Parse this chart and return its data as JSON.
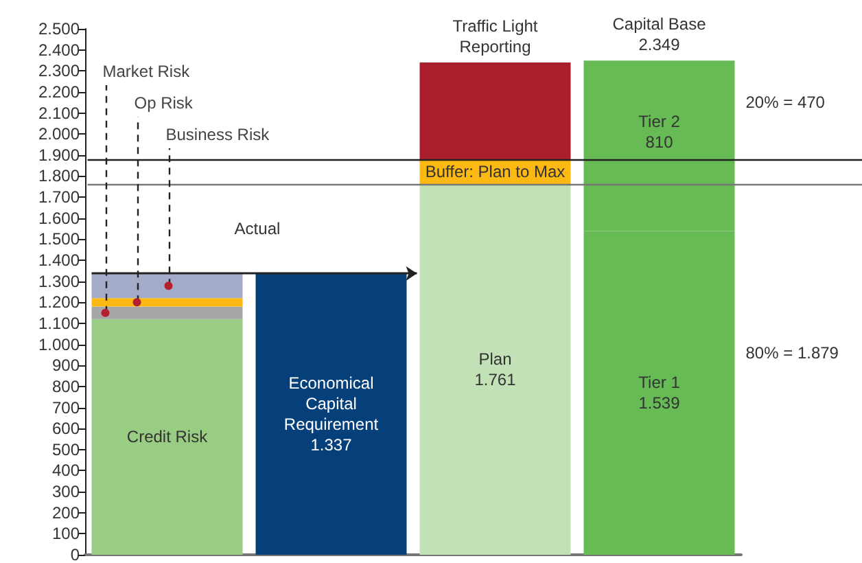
{
  "chart_data": {
    "type": "bar",
    "stacked": true,
    "categories": [
      null,
      null,
      "Traffic Light Reporting",
      "Capital Base"
    ],
    "totals": [
      null,
      null,
      null,
      "2.349"
    ],
    "series": [
      {
        "name": "Credit Risk",
        "color": "#98cd83",
        "values": [
          1120,
          null,
          null,
          null
        ]
      },
      {
        "name": "Market Risk",
        "color": "#a7a7a9",
        "values": [
          60,
          null,
          null,
          null
        ]
      },
      {
        "name": "Op Risk",
        "color": "#fdb913",
        "values": [
          40,
          null,
          null,
          null
        ]
      },
      {
        "name": "Business Risk",
        "color": "#a4abc9",
        "values": [
          117,
          null,
          null,
          null
        ]
      },
      {
        "name": "Economical Capital Requirement",
        "color": "#05407b",
        "values": [
          null,
          1337,
          null,
          null
        ],
        "value_labels": [
          null,
          "1.337",
          null,
          null
        ]
      },
      {
        "name": "Plan",
        "color": "#c3e1b6",
        "values": [
          null,
          null,
          1761,
          null
        ],
        "value_labels": [
          null,
          null,
          "1.761",
          null
        ]
      },
      {
        "name": "Buffer: Plan to Max",
        "color": "#fdb913",
        "values": [
          null,
          null,
          118,
          null
        ]
      },
      {
        "color": "#a91f2d",
        "values": [
          null,
          null,
          461,
          null
        ]
      },
      {
        "name": "Tier 1",
        "color": "#66bb55",
        "values": [
          null,
          null,
          null,
          1539
        ],
        "value_labels": [
          null,
          null,
          null,
          "1.539"
        ]
      },
      {
        "name": "Tier 2",
        "color": "#66bb55",
        "values": [
          null,
          null,
          null,
          810
        ],
        "value_labels": [
          null,
          null,
          null,
          "810"
        ]
      }
    ],
    "ylim": [
      0,
      2500
    ],
    "yticks": [
      {
        "value": 0,
        "label": "0"
      },
      {
        "value": 100,
        "label": "100"
      },
      {
        "value": 200,
        "label": "200"
      },
      {
        "value": 300,
        "label": "300"
      },
      {
        "value": 400,
        "label": "400"
      },
      {
        "value": 500,
        "label": "500"
      },
      {
        "value": 600,
        "label": "600"
      },
      {
        "value": 700,
        "label": "700"
      },
      {
        "value": 800,
        "label": "800"
      },
      {
        "value": 900,
        "label": "900"
      },
      {
        "value": 1000,
        "label": "1.000"
      },
      {
        "value": 1100,
        "label": "1.100"
      },
      {
        "value": 1200,
        "label": "1.200"
      },
      {
        "value": 1300,
        "label": "1.300"
      },
      {
        "value": 1400,
        "label": "1.400"
      },
      {
        "value": 1500,
        "label": "1.500"
      },
      {
        "value": 1600,
        "label": "1.600"
      },
      {
        "value": 1700,
        "label": "1.700"
      },
      {
        "value": 1800,
        "label": "1.800"
      },
      {
        "value": 1900,
        "label": "1.900"
      },
      {
        "value": 2000,
        "label": "2.000"
      },
      {
        "value": 2100,
        "label": "2.100"
      },
      {
        "value": 2200,
        "label": "2.200"
      },
      {
        "value": 2300,
        "label": "2.300"
      },
      {
        "value": 2400,
        "label": "2.400"
      },
      {
        "value": 2500,
        "label": "2.500"
      }
    ],
    "tick_labels": "y",
    "ref_lines": [
      {
        "axis": "y",
        "value": 1879,
        "color": "#222222"
      },
      {
        "axis": "y",
        "value": 1761,
        "color": "#777777"
      }
    ],
    "annotations": [
      "Actual",
      "20% = 470",
      "80% = 1.879"
    ],
    "grid": false,
    "legend": false
  }
}
